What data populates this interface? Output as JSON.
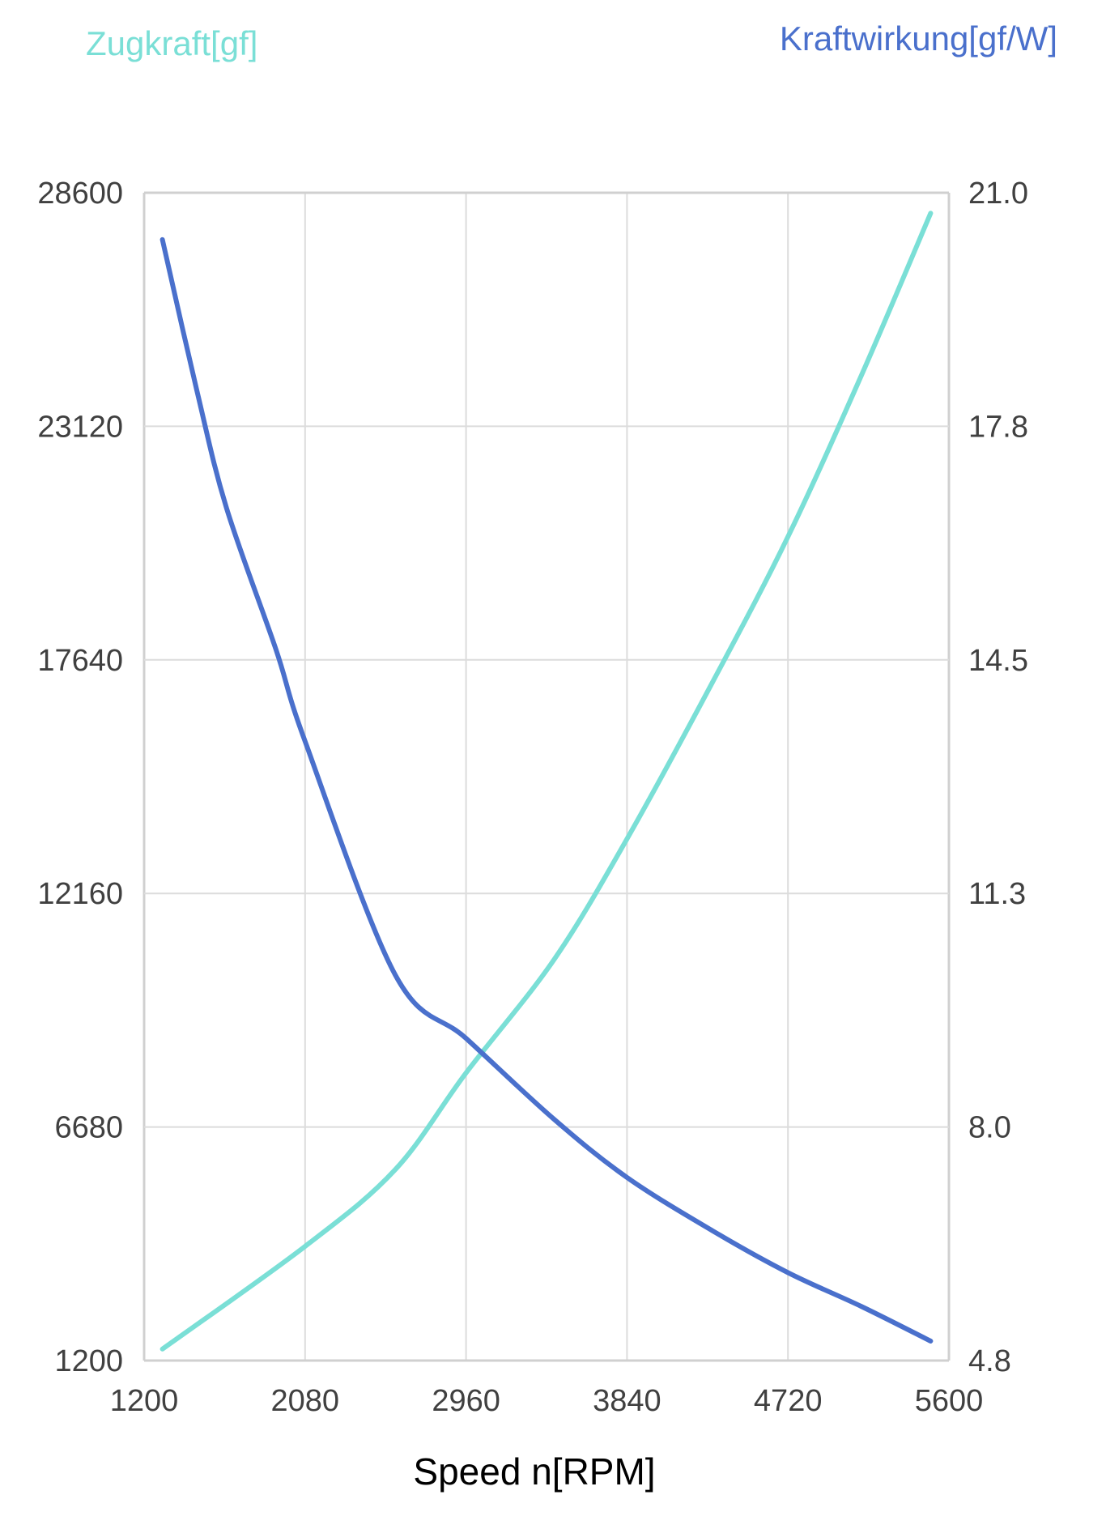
{
  "chart_data": {
    "type": "line",
    "title": "",
    "xlabel": "Speed n[RPM]",
    "ylabel_left": "Zugkraft[gf]",
    "ylabel_right": "Kraftwirkung[gf/W]",
    "xlim": [
      1200,
      5600
    ],
    "ylim_left": [
      1200,
      28600
    ],
    "ylim_right": [
      4.8,
      21.0
    ],
    "x_ticks": [
      "1200",
      "2080",
      "2960",
      "3840",
      "4720",
      "5600"
    ],
    "y_left_ticks": [
      "1200",
      "6680",
      "12160",
      "17640",
      "23120",
      "28600"
    ],
    "y_right_ticks": [
      "4.8",
      "8.0",
      "11.3",
      "14.5",
      "17.8",
      "21.0"
    ],
    "grid": true,
    "series": [
      {
        "name": "Zugkraft[gf]",
        "axis": "left",
        "color": "#7adfd6",
        "x": [
          1300,
          2080,
          2573,
          2960,
          3440,
          3840,
          4308,
          4720,
          5122,
          5500
        ],
        "y": [
          1470,
          3880,
          5680,
          7950,
          10600,
          13440,
          17120,
          20530,
          24320,
          28120
        ]
      },
      {
        "name": "Kraftwirkung[gf/W]",
        "axis": "right",
        "color": "#4a70cc",
        "x": [
          1300,
          1488,
          1650,
          1920,
          2080,
          2573,
          2960,
          3440,
          3840,
          4308,
          4720,
          5122,
          5500
        ],
        "y": [
          20.35,
          18.26,
          16.63,
          14.67,
          13.39,
          10.15,
          9.27,
          8.15,
          7.34,
          6.6,
          6.02,
          5.55,
          5.07
        ]
      }
    ]
  }
}
